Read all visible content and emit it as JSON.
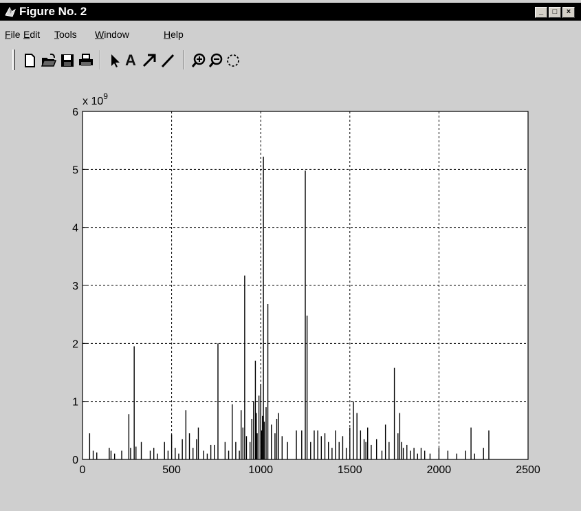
{
  "window": {
    "title": "Figure No. 2"
  },
  "menu": [
    {
      "label": "File",
      "key": "F",
      "rest": "ile"
    },
    {
      "label": "Edit",
      "key": "E",
      "rest": "dit"
    },
    {
      "label": "Tools",
      "key": "T",
      "rest": "ools"
    },
    {
      "label": "Window",
      "key": "W",
      "rest": "indow"
    },
    {
      "label": "Help",
      "key": "H",
      "rest": "elp"
    }
  ],
  "toolbar": {
    "tools": [
      "new-figure-icon",
      "open-file-icon",
      "save-icon",
      "print-icon",
      "select-arrow-icon",
      "insert-text-icon",
      "insert-arrow-icon",
      "insert-line-icon",
      "zoom-in-icon",
      "zoom-out-icon",
      "rotate-3d-icon"
    ],
    "text_tool_label": "A"
  },
  "chart_data": {
    "type": "bar",
    "exponent_label": "x 10",
    "exponent_power": "9",
    "xlim": [
      0,
      2500
    ],
    "ylim": [
      0,
      6
    ],
    "xticks": [
      0,
      500,
      1000,
      1500,
      2000,
      2500
    ],
    "yticks": [
      0,
      1,
      2,
      3,
      4,
      5,
      6
    ],
    "grid": true,
    "grid_style": "dashed",
    "x": [
      40,
      60,
      80,
      150,
      160,
      180,
      220,
      260,
      270,
      290,
      300,
      330,
      380,
      400,
      420,
      460,
      480,
      500,
      520,
      540,
      560,
      580,
      600,
      620,
      640,
      650,
      680,
      700,
      720,
      740,
      760,
      800,
      820,
      840,
      860,
      880,
      890,
      900,
      910,
      920,
      940,
      950,
      960,
      970,
      975,
      980,
      990,
      1000,
      1005,
      1010,
      1015,
      1020,
      1030,
      1040,
      1060,
      1080,
      1090,
      1100,
      1120,
      1150,
      1200,
      1230,
      1250,
      1260,
      1280,
      1300,
      1320,
      1340,
      1360,
      1380,
      1400,
      1420,
      1440,
      1460,
      1480,
      1500,
      1520,
      1540,
      1560,
      1580,
      1590,
      1600,
      1620,
      1650,
      1680,
      1700,
      1720,
      1750,
      1770,
      1780,
      1790,
      1800,
      1820,
      1840,
      1860,
      1880,
      1900,
      1920,
      1950,
      2000,
      2050,
      2100,
      2150,
      2180,
      2200,
      2250,
      2280
    ],
    "values": [
      0.45,
      0.15,
      0.12,
      0.2,
      0.15,
      0.1,
      0.15,
      0.78,
      0.2,
      1.95,
      0.22,
      0.3,
      0.15,
      0.2,
      0.1,
      0.3,
      0.15,
      0.43,
      0.2,
      0.1,
      0.35,
      0.85,
      0.45,
      0.2,
      0.35,
      0.55,
      0.15,
      0.1,
      0.25,
      0.25,
      2.0,
      0.3,
      0.15,
      0.95,
      0.3,
      0.15,
      0.85,
      0.55,
      3.17,
      0.4,
      0.3,
      0.7,
      1.0,
      1.7,
      0.8,
      0.45,
      1.1,
      1.3,
      0.5,
      0.75,
      5.22,
      0.65,
      0.9,
      2.68,
      0.6,
      0.45,
      0.7,
      0.8,
      0.4,
      0.3,
      0.5,
      0.5,
      4.98,
      2.48,
      0.3,
      0.5,
      0.5,
      0.4,
      0.45,
      0.3,
      0.2,
      0.5,
      0.3,
      0.4,
      0.2,
      0.55,
      1.0,
      0.8,
      0.5,
      0.35,
      0.3,
      0.55,
      0.25,
      0.35,
      0.15,
      0.6,
      0.3,
      1.58,
      0.45,
      0.8,
      0.3,
      0.2,
      0.25,
      0.15,
      0.2,
      0.1,
      0.2,
      0.15,
      0.1,
      0.2,
      0.15,
      0.1,
      0.15,
      0.55,
      0.1,
      0.2,
      0.5
    ]
  }
}
